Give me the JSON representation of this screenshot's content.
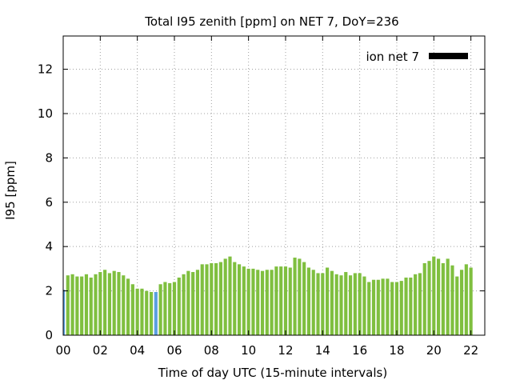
{
  "chart_data": {
    "type": "bar",
    "title": "Total I95 zenith [ppm] on NET 7, DoY=236",
    "xlabel": "Time of day UTC (15-minute intervals)",
    "ylabel": "I95 [ppm]",
    "xlim": [
      0,
      22.75
    ],
    "ylim": [
      0,
      13.5
    ],
    "x_tick_labels": [
      "00",
      "02",
      "04",
      "06",
      "08",
      "10",
      "12",
      "14",
      "16",
      "18",
      "20",
      "22"
    ],
    "y_ticks": [
      0,
      2,
      4,
      6,
      8,
      10,
      12
    ],
    "grid": true,
    "legend_position": "top-right",
    "bar_interval_hours": 0.25,
    "series": [
      {
        "name": "ion net 7",
        "color": "#7fbf3f",
        "highlight_color": "#5a9fe0",
        "highlight_indices": [
          0,
          20
        ],
        "values": [
          2.05,
          2.7,
          2.75,
          2.65,
          2.65,
          2.75,
          2.6,
          2.75,
          2.85,
          2.95,
          2.8,
          2.9,
          2.85,
          2.7,
          2.55,
          2.3,
          2.1,
          2.1,
          2.0,
          1.95,
          1.95,
          2.3,
          2.4,
          2.35,
          2.4,
          2.6,
          2.75,
          2.9,
          2.85,
          2.95,
          3.2,
          3.2,
          3.25,
          3.25,
          3.3,
          3.45,
          3.55,
          3.3,
          3.2,
          3.1,
          3.0,
          3.0,
          2.95,
          2.9,
          2.95,
          2.95,
          3.1,
          3.1,
          3.1,
          3.05,
          3.5,
          3.45,
          3.3,
          3.05,
          2.95,
          2.8,
          2.8,
          3.05,
          2.9,
          2.75,
          2.7,
          2.85,
          2.7,
          2.8,
          2.8,
          2.65,
          2.4,
          2.5,
          2.5,
          2.55,
          2.55,
          2.4,
          2.4,
          2.45,
          2.6,
          2.6,
          2.75,
          2.8,
          3.25,
          3.35,
          3.55,
          3.45,
          3.25,
          3.45,
          3.15,
          2.65,
          2.95,
          3.2,
          3.05
        ]
      }
    ]
  }
}
